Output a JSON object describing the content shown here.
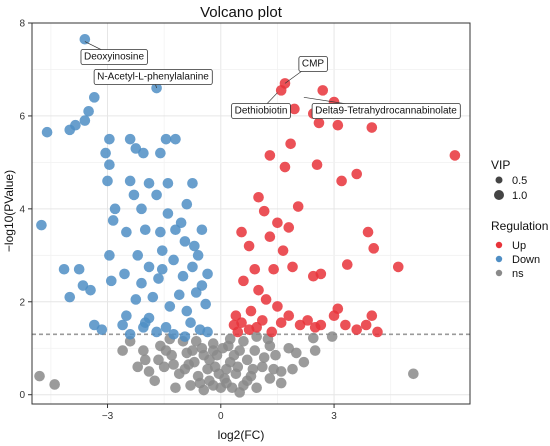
{
  "chart_data": {
    "type": "scatter",
    "title": "Volcano plot",
    "xlabel": "log2(FC)",
    "ylabel": "−log10(PValue)",
    "xlim": [
      -5,
      6.6
    ],
    "ylim": [
      -0.2,
      8.0
    ],
    "x_ticks": [
      -3,
      0,
      3
    ],
    "y_ticks": [
      0,
      2,
      4,
      6,
      8
    ],
    "grid": true,
    "threshold_y": 1.3,
    "legend_vip": {
      "title": "VIP",
      "entries": [
        "0.5",
        "1.0"
      ]
    },
    "legend_regulation": {
      "title": "Regulation",
      "entries": [
        {
          "label": "Up",
          "color": "#e8333a"
        },
        {
          "label": "Down",
          "color": "#4f8ec4"
        },
        {
          "label": "ns",
          "color": "#8a8a8a"
        }
      ]
    },
    "annotations": [
      {
        "label": "Deoxyinosine",
        "x": -3.6,
        "y": 7.6
      },
      {
        "label": "N-Acetyl-L-phenylalanine",
        "x": -1.7,
        "y": 6.6
      },
      {
        "label": "CMP",
        "x": 1.7,
        "y": 6.7
      },
      {
        "label": "Dethiobiotin",
        "x": 1.5,
        "y": 6.5
      },
      {
        "label": "Delta9-Tetrahydrocannabinolate",
        "x": 2.2,
        "y": 6.4
      }
    ],
    "series": [
      {
        "name": "Up",
        "color": "#e8333a",
        "points": [
          [
            6.2,
            5.15
          ],
          [
            4.0,
            5.75
          ],
          [
            3.1,
            5.8
          ],
          [
            2.6,
            5.85
          ],
          [
            3.0,
            6.3
          ],
          [
            2.7,
            6.55
          ],
          [
            1.7,
            6.7
          ],
          [
            1.6,
            6.55
          ],
          [
            1.95,
            6.15
          ],
          [
            2.45,
            6.05
          ],
          [
            1.85,
            5.4
          ],
          [
            1.3,
            5.15
          ],
          [
            1.7,
            4.9
          ],
          [
            2.55,
            4.95
          ],
          [
            3.6,
            4.75
          ],
          [
            3.2,
            4.6
          ],
          [
            2.05,
            4.05
          ],
          [
            1.0,
            4.25
          ],
          [
            1.15,
            3.95
          ],
          [
            1.5,
            3.7
          ],
          [
            1.8,
            3.6
          ],
          [
            0.55,
            3.5
          ],
          [
            1.3,
            3.4
          ],
          [
            0.75,
            3.2
          ],
          [
            1.65,
            3.1
          ],
          [
            3.9,
            3.5
          ],
          [
            4.05,
            3.15
          ],
          [
            4.7,
            2.75
          ],
          [
            2.65,
            2.6
          ],
          [
            1.4,
            2.7
          ],
          [
            0.9,
            2.7
          ],
          [
            1.9,
            2.75
          ],
          [
            3.35,
            2.8
          ],
          [
            2.45,
            2.55
          ],
          [
            1.0,
            2.25
          ],
          [
            0.6,
            2.45
          ],
          [
            1.2,
            2.05
          ],
          [
            1.5,
            1.9
          ],
          [
            0.8,
            1.8
          ],
          [
            0.4,
            1.7
          ],
          [
            1.1,
            1.6
          ],
          [
            0.35,
            1.5
          ],
          [
            0.55,
            1.55
          ],
          [
            1.6,
            1.55
          ],
          [
            2.1,
            1.5
          ],
          [
            3.0,
            1.7
          ],
          [
            3.1,
            1.85
          ],
          [
            4.0,
            1.7
          ],
          [
            3.85,
            1.5
          ],
          [
            3.3,
            1.5
          ],
          [
            0.45,
            1.35
          ],
          [
            0.75,
            1.4
          ],
          [
            2.5,
            1.45
          ],
          [
            2.65,
            1.5
          ],
          [
            3.6,
            1.4
          ],
          [
            4.15,
            1.35
          ],
          [
            1.35,
            1.35
          ],
          [
            0.95,
            1.45
          ],
          [
            1.8,
            1.7
          ],
          [
            2.3,
            1.6
          ]
        ]
      },
      {
        "name": "Down",
        "color": "#4f8ec4",
        "points": [
          [
            -3.6,
            7.65
          ],
          [
            -3.5,
            6.1
          ],
          [
            -3.6,
            5.9
          ],
          [
            -3.35,
            6.4
          ],
          [
            -1.7,
            6.6
          ],
          [
            -4.0,
            5.7
          ],
          [
            -4.6,
            5.65
          ],
          [
            -3.85,
            5.8
          ],
          [
            -2.95,
            5.5
          ],
          [
            -2.4,
            5.5
          ],
          [
            -1.45,
            5.5
          ],
          [
            -1.2,
            5.5
          ],
          [
            -3.05,
            5.2
          ],
          [
            -2.25,
            5.3
          ],
          [
            -2.05,
            5.2
          ],
          [
            -2.95,
            4.95
          ],
          [
            -1.6,
            5.2
          ],
          [
            -3.0,
            4.6
          ],
          [
            -2.4,
            4.6
          ],
          [
            -1.9,
            4.55
          ],
          [
            -1.4,
            4.55
          ],
          [
            -2.3,
            4.3
          ],
          [
            -1.7,
            4.3
          ],
          [
            -0.75,
            4.55
          ],
          [
            -0.9,
            4.1
          ],
          [
            -2.8,
            4.0
          ],
          [
            -2.1,
            4.0
          ],
          [
            -1.4,
            3.9
          ],
          [
            -1.05,
            3.7
          ],
          [
            -4.75,
            3.65
          ],
          [
            -2.85,
            3.75
          ],
          [
            -2.5,
            3.5
          ],
          [
            -2.0,
            3.55
          ],
          [
            -1.6,
            3.5
          ],
          [
            -1.2,
            3.55
          ],
          [
            -0.5,
            3.55
          ],
          [
            -0.7,
            3.2
          ],
          [
            -2.95,
            3.0
          ],
          [
            -2.2,
            3.0
          ],
          [
            -1.55,
            3.1
          ],
          [
            -0.95,
            3.3
          ],
          [
            -0.6,
            3.0
          ],
          [
            -1.25,
            2.9
          ],
          [
            -1.9,
            2.75
          ],
          [
            -2.55,
            2.6
          ],
          [
            -0.75,
            2.75
          ],
          [
            -0.35,
            2.6
          ],
          [
            -4.15,
            2.7
          ],
          [
            -3.75,
            2.7
          ],
          [
            -3.65,
            2.35
          ],
          [
            -3.45,
            2.25
          ],
          [
            -4.0,
            2.1
          ],
          [
            -2.9,
            2.45
          ],
          [
            -2.1,
            2.4
          ],
          [
            -1.65,
            2.5
          ],
          [
            -1.0,
            2.55
          ],
          [
            -0.5,
            2.35
          ],
          [
            -2.25,
            2.05
          ],
          [
            -1.8,
            2.1
          ],
          [
            -1.1,
            2.15
          ],
          [
            -0.65,
            2.2
          ],
          [
            -1.35,
            1.9
          ],
          [
            -0.9,
            1.8
          ],
          [
            -0.4,
            1.95
          ],
          [
            -2.5,
            1.7
          ],
          [
            -1.9,
            1.65
          ],
          [
            -3.35,
            1.5
          ],
          [
            -3.15,
            1.4
          ],
          [
            -2.6,
            1.5
          ],
          [
            -2.05,
            1.45
          ],
          [
            -1.45,
            1.45
          ],
          [
            -0.8,
            1.55
          ],
          [
            -0.55,
            1.4
          ],
          [
            -2.4,
            1.3
          ],
          [
            -1.25,
            1.3
          ],
          [
            -1.7,
            1.35
          ],
          [
            -0.35,
            1.35
          ],
          [
            -0.95,
            1.25
          ],
          [
            -2.0,
            1.55
          ],
          [
            -1.55,
            2.7
          ]
        ]
      },
      {
        "name": "ns",
        "color": "#8a8a8a",
        "points": [
          [
            -4.8,
            0.4
          ],
          [
            -4.4,
            0.22
          ],
          [
            5.1,
            0.45
          ],
          [
            -2.4,
            1.15
          ],
          [
            2.45,
            1.22
          ],
          [
            2.95,
            1.25
          ],
          [
            -2.05,
            0.95
          ],
          [
            -1.6,
            1.05
          ],
          [
            1.8,
            1.0
          ],
          [
            1.3,
            1.05
          ],
          [
            -1.9,
            0.5
          ],
          [
            -2.0,
            0.75
          ],
          [
            1.6,
            0.5
          ],
          [
            2.0,
            0.9
          ],
          [
            -1.3,
            0.85
          ],
          [
            -0.9,
            0.9
          ],
          [
            0.9,
            0.95
          ],
          [
            0.5,
            0.95
          ],
          [
            -0.5,
            1.0
          ],
          [
            -0.2,
            1.1
          ],
          [
            0.2,
            1.05
          ],
          [
            -1.5,
            0.6
          ],
          [
            1.1,
            0.6
          ],
          [
            -0.7,
            0.7
          ],
          [
            0.7,
            0.75
          ],
          [
            -1.1,
            0.45
          ],
          [
            1.3,
            0.35
          ],
          [
            -0.6,
            0.4
          ],
          [
            0.4,
            0.45
          ],
          [
            -0.3,
            0.3
          ],
          [
            0.1,
            0.35
          ],
          [
            -0.15,
            0.6
          ],
          [
            0.25,
            0.7
          ],
          [
            -0.45,
            0.85
          ],
          [
            0.6,
            0.2
          ],
          [
            -0.8,
            0.2
          ],
          [
            0.0,
            0.15
          ],
          [
            -0.2,
            0.2
          ],
          [
            0.3,
            0.15
          ],
          [
            -1.75,
            0.3
          ],
          [
            1.6,
            0.25
          ],
          [
            -1.2,
            0.15
          ],
          [
            0.95,
            0.15
          ],
          [
            -0.05,
            0.45
          ],
          [
            0.15,
            0.55
          ],
          [
            -0.35,
            0.55
          ],
          [
            0.45,
            0.6
          ],
          [
            -0.55,
            0.25
          ],
          [
            0.8,
            0.4
          ],
          [
            -0.95,
            0.55
          ],
          [
            1.15,
            0.8
          ],
          [
            -1.35,
            1.2
          ],
          [
            1.45,
            0.85
          ],
          [
            -0.1,
            0.85
          ],
          [
            0.05,
            1.0
          ],
          [
            -2.2,
            0.6
          ],
          [
            2.2,
            0.7
          ],
          [
            -1.0,
            1.15
          ],
          [
            0.6,
            1.15
          ],
          [
            -0.65,
            1.15
          ],
          [
            0.35,
            0.85
          ],
          [
            -0.3,
            0.75
          ],
          [
            0.85,
            0.55
          ],
          [
            -1.45,
            0.95
          ],
          [
            1.9,
            0.55
          ],
          [
            -0.85,
            0.65
          ],
          [
            0.15,
            0.25
          ],
          [
            -0.45,
            0.1
          ],
          [
            0.5,
            0.05
          ],
          [
            1.25,
            1.2
          ],
          [
            -1.65,
            0.75
          ],
          [
            2.5,
            0.95
          ],
          [
            -2.6,
            0.95
          ],
          [
            0.7,
            0.3
          ],
          [
            -0.2,
            0.95
          ],
          [
            0.95,
            1.25
          ],
          [
            -0.75,
            0.95
          ],
          [
            1.4,
            0.55
          ],
          [
            -1.25,
            0.65
          ],
          [
            0.25,
            1.2
          ]
        ]
      }
    ]
  }
}
